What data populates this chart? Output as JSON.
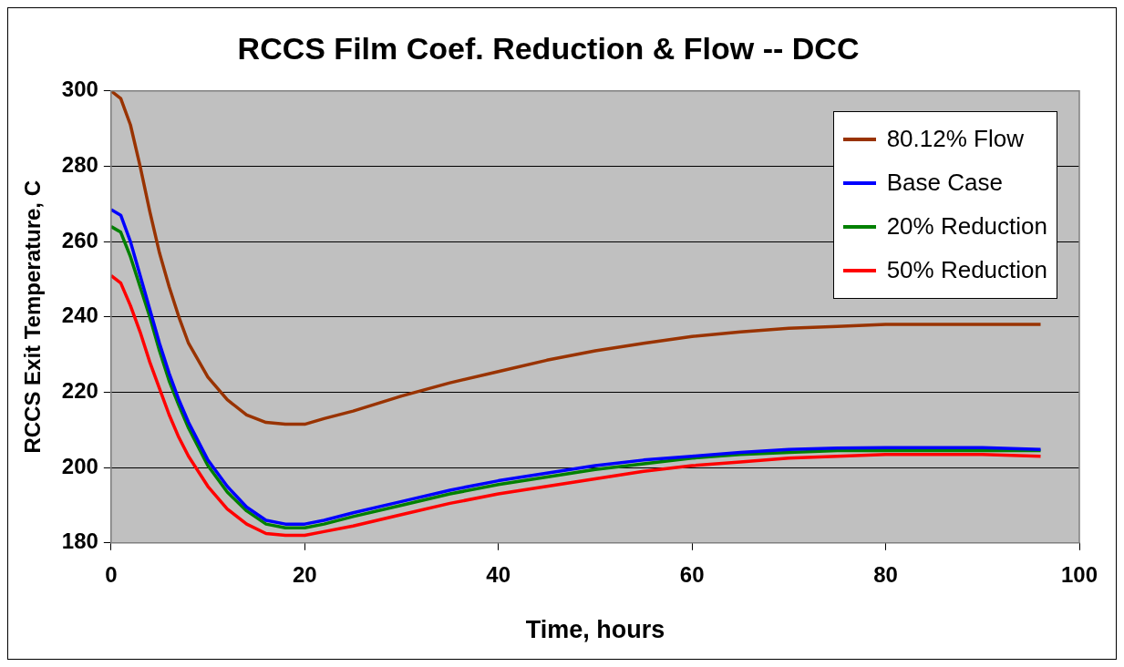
{
  "chart_data": {
    "type": "line",
    "title": "RCCS Film Coef. Reduction & Flow -- DCC",
    "xlabel": "Time, hours",
    "ylabel": "RCCS Exit Temperature, C",
    "x": [
      0,
      1,
      2,
      3,
      4,
      5,
      6,
      7,
      8,
      10,
      12,
      14,
      16,
      18,
      20,
      22,
      25,
      30,
      35,
      40,
      45,
      50,
      55,
      60,
      65,
      70,
      75,
      80,
      90,
      96
    ],
    "series": [
      {
        "name": "80.12% Flow",
        "color": "#993300",
        "values": [
          300,
          298,
          291,
          280,
          268,
          257,
          248,
          240,
          233,
          224,
          218,
          214,
          212,
          211.5,
          211.5,
          213,
          215,
          219,
          222.5,
          225.5,
          228.5,
          231,
          233,
          234.8,
          236,
          237,
          237.5,
          238,
          238,
          238
        ]
      },
      {
        "name": "Base Case",
        "color": "#0000ff",
        "values": [
          268.5,
          267,
          260,
          251,
          242,
          233,
          225,
          218,
          212,
          202,
          195,
          189.5,
          186,
          185,
          185,
          186,
          188,
          191,
          194,
          196.5,
          198.5,
          200.5,
          202,
          203,
          204,
          204.8,
          205.2,
          205.3,
          205.3,
          204.8
        ]
      },
      {
        "name": "20% Reduction",
        "color": "#008000",
        "values": [
          264,
          262.5,
          256,
          248,
          240,
          231,
          223,
          216.5,
          210.5,
          200.5,
          193.5,
          188.5,
          185,
          184,
          184,
          185,
          187,
          190,
          193,
          195.5,
          197.5,
          199.5,
          201,
          202.5,
          203.5,
          204,
          204.5,
          204.5,
          204.5,
          204.5
        ]
      },
      {
        "name": "50% Reduction",
        "color": "#ff0000",
        "values": [
          251,
          249,
          243,
          236,
          228,
          221,
          214,
          208,
          203,
          195,
          189,
          185,
          182.5,
          182,
          182,
          183,
          184.5,
          187.5,
          190.5,
          193,
          195,
          197,
          199,
          200.5,
          201.5,
          202.5,
          203,
          203.5,
          203.5,
          203
        ]
      }
    ],
    "xlim": [
      0,
      100
    ],
    "xticks": [
      0,
      20,
      40,
      60,
      80,
      100
    ],
    "ylim": [
      180,
      300
    ],
    "yticks": [
      180,
      200,
      220,
      240,
      260,
      280,
      300
    ],
    "grid": "y",
    "legend": "top right"
  }
}
